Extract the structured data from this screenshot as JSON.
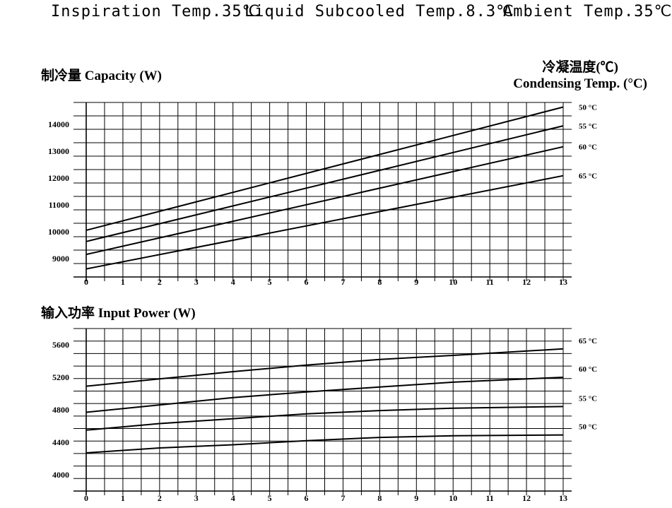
{
  "header": {
    "inspiration": "Inspiration Temp.35℃",
    "liquid": "Liquid Subcooled Temp.8.3℃",
    "ambient": "Ambient Temp.35℃"
  },
  "chart_data": [
    {
      "type": "line",
      "title": "制冷量  Capacity (W)",
      "legend_title": [
        "冷凝温度(℃)",
        "Condensing Temp. (°C)"
      ],
      "xlim": [
        0,
        13
      ],
      "ylim": [
        8500,
        15000
      ],
      "x_ticks": [
        "0",
        "1",
        "2",
        "3",
        "4",
        "5",
        "6",
        "7",
        "8",
        "9",
        "10",
        "11",
        "12",
        "13"
      ],
      "y_ticks": [
        {
          "value": 9000,
          "label": "9000"
        },
        {
          "value": 10000,
          "label": "10000"
        },
        {
          "value": 11000,
          "label": "11000"
        },
        {
          "value": 12000,
          "label": "12000"
        },
        {
          "value": 13000,
          "label": "13000"
        },
        {
          "value": 14000,
          "label": "14000"
        }
      ],
      "grid": true,
      "legend_position": "right",
      "series": [
        {
          "name": "50 °C",
          "x": [
            0,
            13
          ],
          "y": [
            10240,
            14830
          ]
        },
        {
          "name": "55 °C",
          "x": [
            0,
            13
          ],
          "y": [
            9820,
            14130
          ]
        },
        {
          "name": "60 °C",
          "x": [
            0,
            13
          ],
          "y": [
            9340,
            13350
          ]
        },
        {
          "name": "65 °C",
          "x": [
            0,
            13
          ],
          "y": [
            8800,
            12270
          ]
        }
      ]
    },
    {
      "type": "line",
      "title": "输入功率  Input Power (W)",
      "xlim": [
        0,
        13
      ],
      "ylim": [
        3860,
        5860
      ],
      "x_ticks": [
        "0",
        "1",
        "2",
        "3",
        "4",
        "5",
        "6",
        "7",
        "8",
        "9",
        "10",
        "11",
        "12",
        "13"
      ],
      "y_ticks": [
        {
          "value": 4000,
          "label": "4000"
        },
        {
          "value": 4400,
          "label": "4400"
        },
        {
          "value": 4800,
          "label": "4800"
        },
        {
          "value": 5200,
          "label": "5200"
        },
        {
          "value": 5600,
          "label": "5600"
        }
      ],
      "grid": true,
      "legend_position": "right",
      "series": [
        {
          "name": "65 °C",
          "x": [
            0,
            2,
            4,
            6,
            8,
            10,
            13
          ],
          "y": [
            5150,
            5240,
            5330,
            5410,
            5480,
            5530,
            5610
          ]
        },
        {
          "name": "60 °C",
          "x": [
            0,
            2,
            4,
            6,
            8,
            10,
            13
          ],
          "y": [
            4830,
            4920,
            5010,
            5080,
            5140,
            5200,
            5260
          ]
        },
        {
          "name": "55 °C",
          "x": [
            0,
            2,
            4,
            6,
            8,
            10,
            13
          ],
          "y": [
            4610,
            4690,
            4750,
            4810,
            4850,
            4880,
            4900
          ]
        },
        {
          "name": "50 °C",
          "x": [
            0,
            2,
            4,
            6,
            8,
            10,
            13
          ],
          "y": [
            4330,
            4390,
            4430,
            4480,
            4520,
            4540,
            4550
          ]
        }
      ]
    }
  ]
}
